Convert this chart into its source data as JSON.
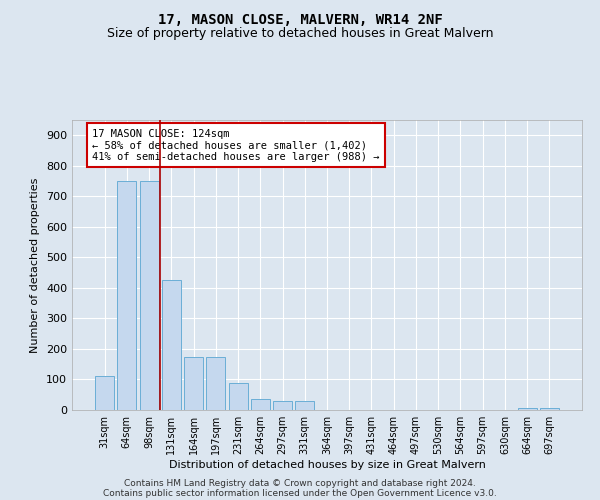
{
  "title": "17, MASON CLOSE, MALVERN, WR14 2NF",
  "subtitle": "Size of property relative to detached houses in Great Malvern",
  "xlabel": "Distribution of detached houses by size in Great Malvern",
  "ylabel": "Number of detached properties",
  "categories": [
    "31sqm",
    "64sqm",
    "98sqm",
    "131sqm",
    "164sqm",
    "197sqm",
    "231sqm",
    "264sqm",
    "297sqm",
    "331sqm",
    "364sqm",
    "397sqm",
    "431sqm",
    "464sqm",
    "497sqm",
    "530sqm",
    "564sqm",
    "597sqm",
    "630sqm",
    "664sqm",
    "697sqm"
  ],
  "values": [
    112,
    750,
    750,
    425,
    175,
    175,
    90,
    35,
    30,
    30,
    0,
    0,
    0,
    0,
    0,
    0,
    0,
    0,
    0,
    8,
    5
  ],
  "bar_color": "#c5d8ee",
  "bar_edge_color": "#6aaed6",
  "vline_color": "#aa0000",
  "vline_pos": 2.5,
  "annotation_text": "17 MASON CLOSE: 124sqm\n← 58% of detached houses are smaller (1,402)\n41% of semi-detached houses are larger (988) →",
  "annotation_box_color": "#ffffff",
  "annotation_box_edge_color": "#cc0000",
  "ylim": [
    0,
    950
  ],
  "yticks": [
    0,
    100,
    200,
    300,
    400,
    500,
    600,
    700,
    800,
    900
  ],
  "background_color": "#dce6f0",
  "grid_color": "#ffffff",
  "footer_line1": "Contains HM Land Registry data © Crown copyright and database right 2024.",
  "footer_line2": "Contains public sector information licensed under the Open Government Licence v3.0.",
  "title_fontsize": 10,
  "subtitle_fontsize": 9
}
